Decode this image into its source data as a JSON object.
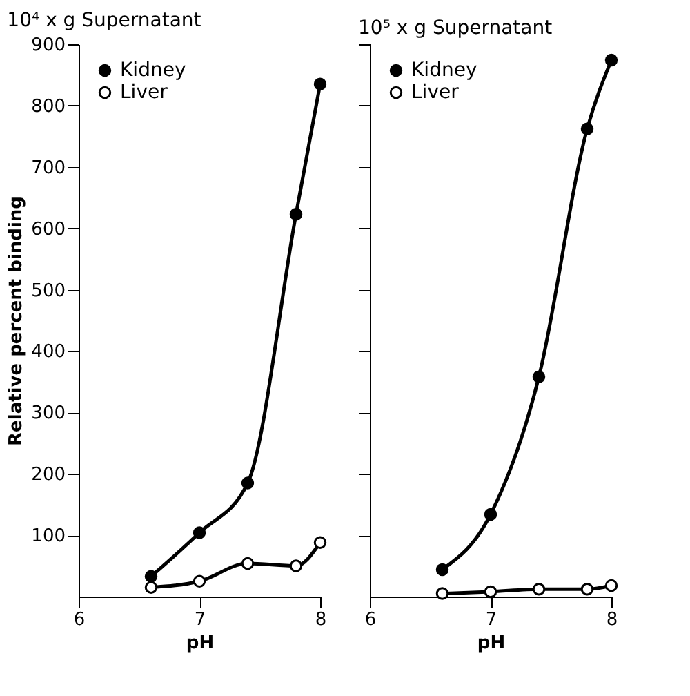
{
  "chart_data": [
    {
      "type": "line",
      "title": "10⁴ x g Supernatant",
      "xlabel": "pH",
      "ylabel": "Relative percent binding",
      "x": [
        6.6,
        7.0,
        7.4,
        7.8,
        8.0
      ],
      "xlim": [
        6,
        8
      ],
      "xticks": [
        6,
        7,
        8
      ],
      "ylim": [
        0,
        900
      ],
      "yticks": [
        100,
        200,
        300,
        400,
        500,
        600,
        700,
        800,
        900
      ],
      "marker": "circle",
      "legend": "top left",
      "grid": false,
      "series": [
        {
          "name": "Kidney",
          "color": "#000000",
          "values": [
            33,
            104,
            185,
            623,
            835
          ]
        },
        {
          "name": "Liver",
          "color": "#ffffff",
          "values": [
            15,
            25,
            54,
            50,
            88
          ]
        }
      ]
    },
    {
      "type": "line",
      "title": "10⁵ x g Supernatant",
      "xlabel": "pH",
      "x": [
        6.6,
        7.0,
        7.4,
        7.8,
        8.0
      ],
      "xlim": [
        6,
        8
      ],
      "xticks": [
        6,
        7,
        8
      ],
      "ylim": [
        0,
        900
      ],
      "yticks": [
        100,
        200,
        300,
        400,
        500,
        600,
        700,
        800,
        900
      ],
      "tick_labels": "x",
      "marker": "circle",
      "legend": "top left",
      "grid": false,
      "series": [
        {
          "name": "Kidney",
          "color": "#000000",
          "values": [
            44,
            134,
            358,
            762,
            874
          ]
        },
        {
          "name": "Liver",
          "color": "#ffffff",
          "values": [
            5,
            8,
            12,
            12,
            18
          ]
        }
      ]
    }
  ]
}
